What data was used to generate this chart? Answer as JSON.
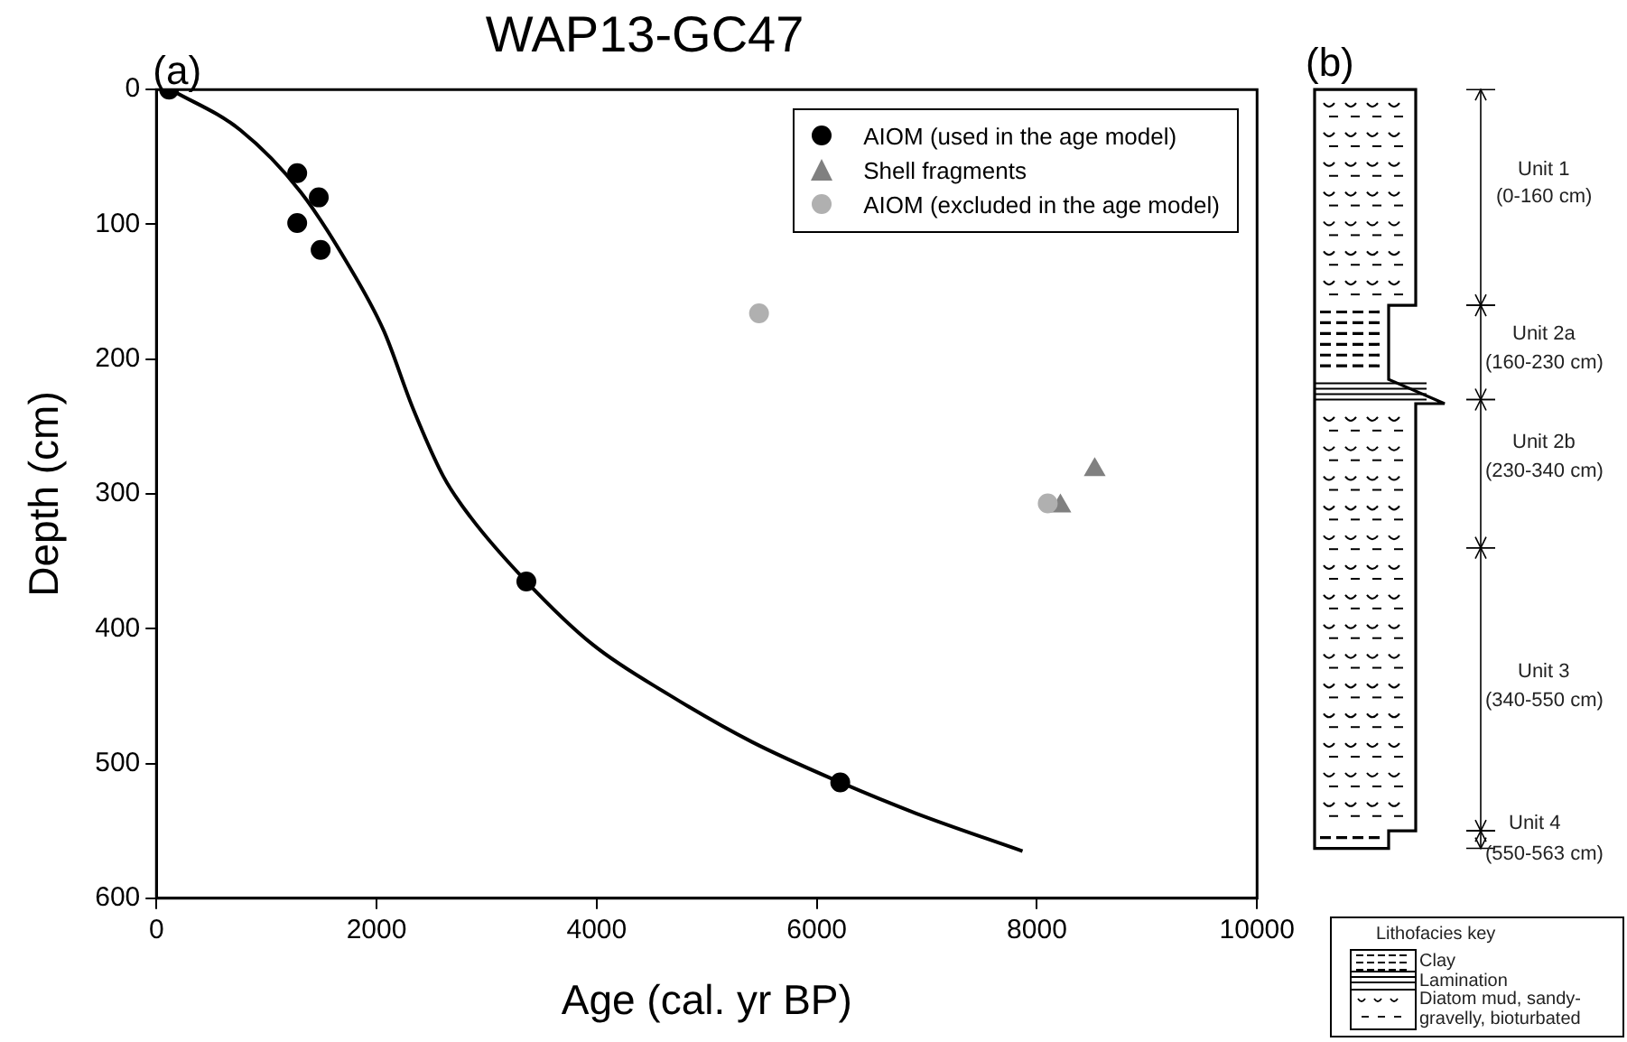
{
  "chart_data": [
    {
      "type": "scatter",
      "title": "WAP13-GC47",
      "xlabel": "Age (cal. yr BP)",
      "ylabel": "Depth (cm)",
      "annotations": [
        "(a)"
      ],
      "xlim": [
        0,
        10000
      ],
      "xticks": [
        0,
        2000,
        4000,
        6000,
        8000,
        10000
      ],
      "ylim": [
        600,
        0
      ],
      "yticks": [
        0,
        100,
        200,
        300,
        400,
        500,
        600
      ],
      "grid": false,
      "legend": "top right",
      "series": [
        {
          "name": "AIOM (used in the age model)",
          "color": "#000000",
          "marker": "circle",
          "x": [
            115,
            1279,
            1475,
            1279,
            1492,
            3361,
            6213
          ],
          "values": [
            0,
            62,
            80,
            99,
            119,
            365,
            514
          ]
        },
        {
          "name": "Shell fragments",
          "color": "#808080",
          "marker": "triangle",
          "x": [
            8213,
            8525
          ],
          "values": [
            309,
            282
          ]
        },
        {
          "name": "AIOM (excluded in the age model)",
          "color": "#b0b0b0",
          "marker": "circle",
          "x": [
            5475,
            8098
          ],
          "values": [
            166,
            307
          ]
        },
        {
          "type": "line",
          "color": "#000000",
          "marker": "none",
          "line_style": "solid",
          "x": [
            130,
            762,
            1311,
            1721,
            2066,
            2328,
            2607,
            2852,
            3361,
            3967,
            4656,
            5410,
            6213,
            6902,
            7869
          ],
          "values": [
            0,
            30,
            76,
            127,
            179,
            236,
            287,
            317,
            365,
            412,
            449,
            484,
            514,
            537,
            565
          ]
        }
      ]
    },
    {
      "type": "other",
      "title": "(b)",
      "annotations": [
        "Unit 1",
        "(0-160 cm)",
        "Unit 2a",
        "(160-230 cm)",
        "Unit 2b",
        "(230-340 cm)",
        "Unit 3",
        "(340-550 cm)",
        "Unit 4",
        "(550-563 cm)",
        "Lithofacies key",
        "Clay",
        "Lamination",
        "Diatom mud, sandy-gravelly, bioturbated"
      ]
    }
  ]
}
